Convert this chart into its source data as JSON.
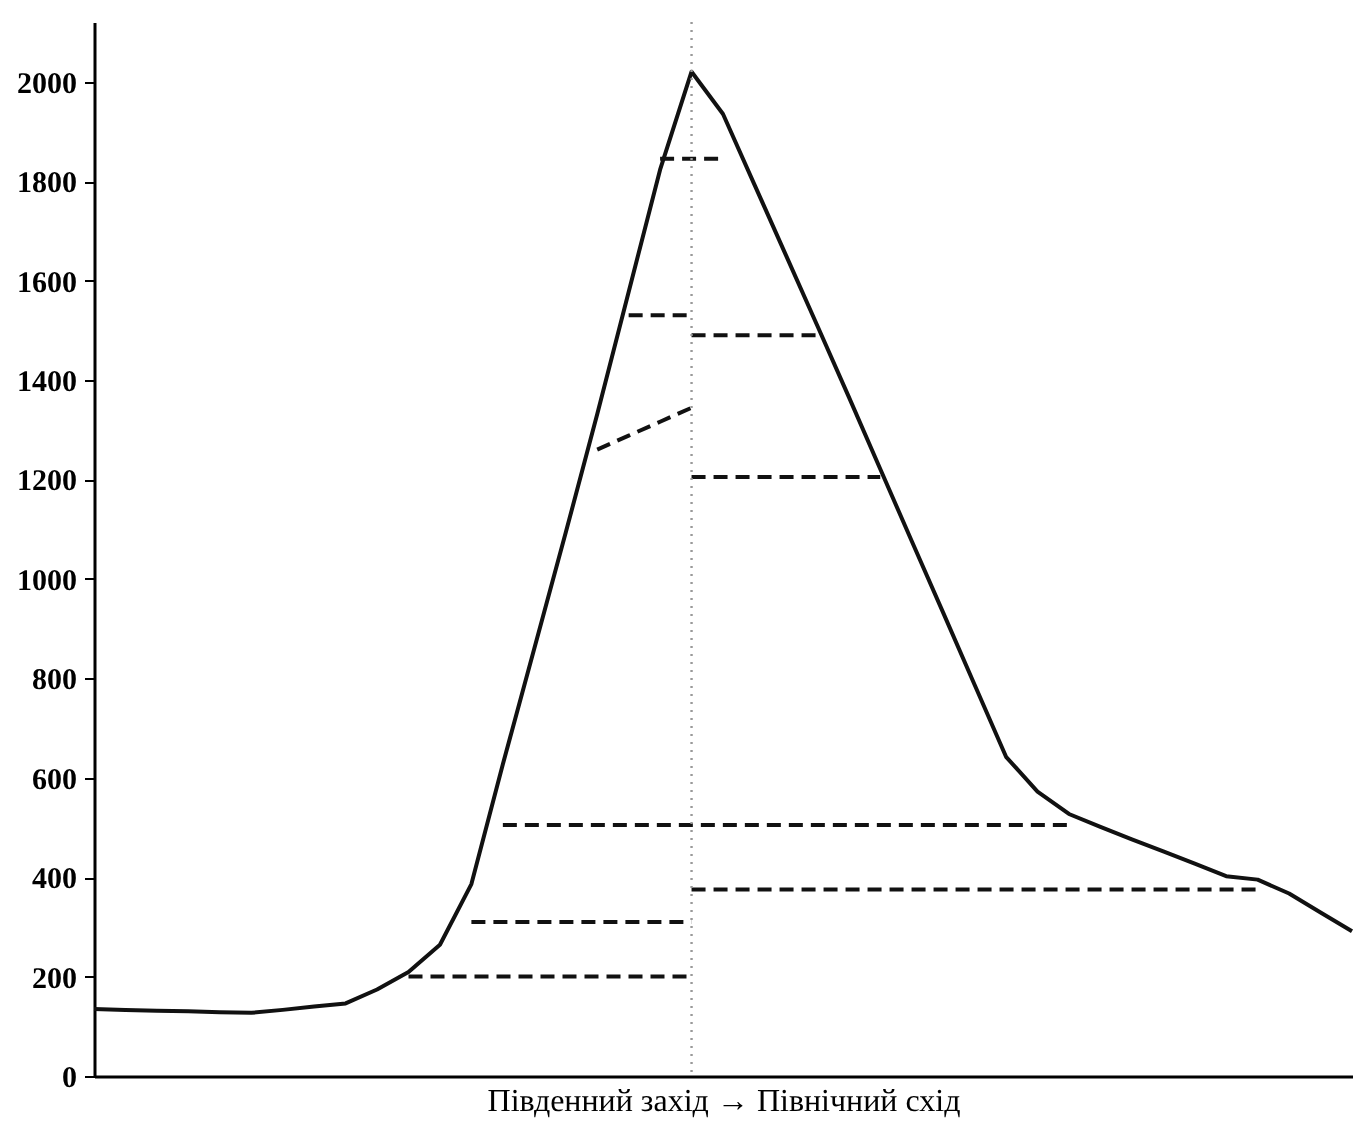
{
  "chart_data": {
    "type": "line",
    "xlabel": "Південний захід → Північний схід",
    "categories": [
      null,
      null,
      null,
      null,
      null,
      null,
      null,
      null,
      null,
      null,
      null,
      null,
      null,
      null,
      null,
      null,
      null,
      null,
      null,
      null,
      null,
      null,
      null,
      null,
      null,
      null,
      null,
      null,
      null,
      null,
      null,
      null,
      null,
      null,
      null,
      null,
      null,
      null,
      null,
      null,
      null
    ],
    "ylim": [
      0,
      2120
    ],
    "yticks": [
      0,
      200,
      400,
      600,
      800,
      1000,
      1200,
      1400,
      1600,
      1800,
      2000
    ],
    "tick_labels": "y",
    "grid": false,
    "legend": false,
    "marker": "none",
    "series": [
      {
        "color": "#111111",
        "line_style": "solid",
        "values": [
          135,
          133,
          131,
          130,
          128,
          127,
          133,
          140,
          146,
          174,
          209,
          264,
          386,
          627,
          860,
          1093,
          1331,
          1577,
          1823,
          2020,
          1935,
          1793,
          1651,
          1509,
          1366,
          1221,
          1076,
          932,
          787,
          642,
          572,
          527,
          501,
          476,
          452,
          427,
          402,
          395,
          367,
          329,
          291
        ]
      },
      {
        "color": "#111111",
        "line_style": "dashed",
        "values": [
          null,
          null,
          null,
          null,
          null,
          null,
          null,
          null,
          null,
          null,
          200,
          200,
          200,
          200,
          200,
          200,
          200,
          200,
          200,
          200,
          null,
          null,
          null,
          null,
          null,
          null,
          null,
          null,
          null,
          null,
          null,
          null,
          null,
          null,
          null,
          null,
          null,
          null,
          null,
          null,
          null
        ]
      },
      {
        "color": "#111111",
        "line_style": "dashed",
        "values": [
          null,
          null,
          null,
          null,
          null,
          null,
          null,
          null,
          null,
          null,
          null,
          null,
          310,
          310,
          310,
          310,
          310,
          310,
          310,
          310,
          null,
          null,
          null,
          null,
          null,
          null,
          null,
          null,
          null,
          null,
          null,
          null,
          null,
          null,
          null,
          null,
          null,
          null,
          null,
          null,
          null
        ]
      },
      {
        "color": "#111111",
        "line_style": "dashed",
        "values": [
          null,
          null,
          null,
          null,
          null,
          null,
          null,
          null,
          null,
          null,
          null,
          null,
          null,
          505,
          505,
          505,
          505,
          505,
          505,
          505,
          505,
          505,
          505,
          505,
          505,
          505,
          505,
          505,
          505,
          505,
          505,
          505,
          null,
          null,
          null,
          null,
          null,
          null,
          null,
          null,
          null
        ]
      },
      {
        "color": "#111111",
        "line_style": "dashed",
        "values": [
          null,
          null,
          null,
          null,
          null,
          null,
          null,
          null,
          null,
          null,
          null,
          null,
          null,
          null,
          null,
          null,
          1260,
          1288,
          1316,
          1344,
          null,
          null,
          null,
          null,
          null,
          null,
          null,
          null,
          null,
          null,
          null,
          null,
          null,
          null,
          null,
          null,
          null,
          null,
          null,
          null,
          null
        ]
      },
      {
        "color": "#111111",
        "line_style": "dashed",
        "values": [
          null,
          null,
          null,
          null,
          null,
          null,
          null,
          null,
          null,
          null,
          null,
          null,
          null,
          null,
          null,
          null,
          null,
          1530,
          1530,
          1530,
          null,
          null,
          null,
          null,
          null,
          null,
          null,
          null,
          null,
          null,
          null,
          null,
          null,
          null,
          null,
          null,
          null,
          null,
          null,
          null,
          null
        ]
      },
      {
        "color": "#111111",
        "line_style": "dashed",
        "values": [
          null,
          null,
          null,
          null,
          null,
          null,
          null,
          null,
          null,
          null,
          null,
          null,
          null,
          null,
          null,
          null,
          null,
          null,
          1845,
          1845,
          1845,
          null,
          null,
          null,
          null,
          null,
          null,
          null,
          null,
          null,
          null,
          null,
          null,
          null,
          null,
          null,
          null,
          null,
          null,
          null,
          null
        ]
      },
      {
        "color": "#111111",
        "line_style": "dashed",
        "values": [
          null,
          null,
          null,
          null,
          null,
          null,
          null,
          null,
          null,
          null,
          null,
          null,
          null,
          null,
          null,
          null,
          null,
          null,
          null,
          1490,
          1490,
          1490,
          1490,
          1490,
          null,
          null,
          null,
          null,
          null,
          null,
          null,
          null,
          null,
          null,
          null,
          null,
          null,
          null,
          null,
          null,
          null
        ]
      },
      {
        "color": "#111111",
        "line_style": "dashed",
        "values": [
          null,
          null,
          null,
          null,
          null,
          null,
          null,
          null,
          null,
          null,
          null,
          null,
          null,
          null,
          null,
          null,
          null,
          null,
          null,
          1205,
          1205,
          1205,
          1205,
          1205,
          1205,
          1205,
          null,
          null,
          null,
          null,
          null,
          null,
          null,
          null,
          null,
          null,
          null,
          null,
          null,
          null,
          null
        ]
      },
      {
        "color": "#111111",
        "line_style": "dashed",
        "values": [
          null,
          null,
          null,
          null,
          null,
          null,
          null,
          null,
          null,
          null,
          null,
          null,
          null,
          null,
          null,
          null,
          null,
          null,
          null,
          375,
          375,
          375,
          375,
          375,
          375,
          375,
          375,
          375,
          375,
          375,
          375,
          375,
          375,
          375,
          375,
          375,
          375,
          375,
          null,
          null,
          null
        ]
      }
    ]
  }
}
